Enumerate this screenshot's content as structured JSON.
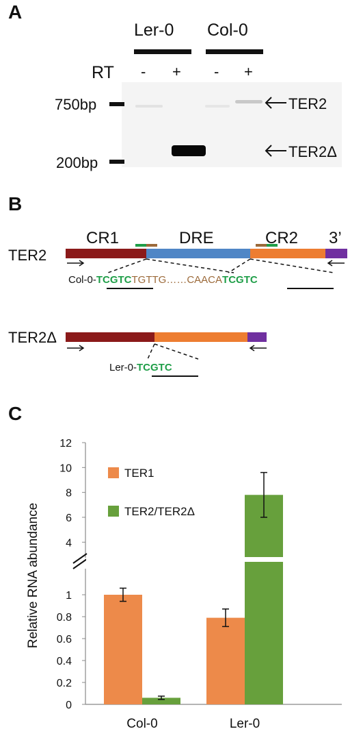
{
  "panelA": {
    "letter": "A",
    "strain1": "Ler-0",
    "strain2": "Col-0",
    "rt_label": "RT",
    "lanes": [
      "-",
      "+",
      "-",
      "+"
    ],
    "marker_top": "750bp",
    "marker_bottom": "200bp",
    "band_top": "TER2",
    "band_bottom": "TER2Δ"
  },
  "panelB": {
    "letter": "B",
    "ter2_label": "TER2",
    "ter2d_label": "TER2Δ",
    "region1": "CR1",
    "region2": "DRE",
    "region3": "CR2",
    "region4": "3’",
    "col_prefix": "Col-0-",
    "col_repeat1": "TCGTC",
    "col_mid1": "TGTTG",
    "col_dots": "……",
    "col_mid2": "CAACA",
    "col_repeat2": "TCGTC",
    "ler_prefix": "Ler-0-",
    "ler_repeat": "TCGTC",
    "colors": {
      "cr1": "#8b1a1a",
      "dre": "#4f86c6",
      "cr2": "#ed7d31",
      "tail": "#7030a0",
      "green": "#1f9e48",
      "brown": "#9c6a3a"
    }
  },
  "panelC": {
    "letter": "C"
  },
  "chart_data": {
    "type": "bar",
    "categories": [
      "Col-0",
      "Ler-0"
    ],
    "series": [
      {
        "name": "TER1",
        "values": [
          1.0,
          0.79
        ],
        "errors": [
          0.06,
          0.08
        ],
        "color": "#ed8a4a"
      },
      {
        "name": "TER2/TER2Δ",
        "values": [
          0.06,
          7.8
        ],
        "errors": [
          0.015,
          1.8
        ],
        "color": "#67a03c"
      }
    ],
    "ylabel": "Relative RNA abundance",
    "xlabel": "",
    "axis_break": {
      "lower": [
        0,
        1.1
      ],
      "upper": [
        3.3,
        12
      ]
    },
    "yticks": [
      "0",
      "0.2",
      "0.4",
      "0.6",
      "0.8",
      "1",
      "4",
      "6",
      "8",
      "10",
      "12"
    ],
    "legend_position": "top-left"
  }
}
